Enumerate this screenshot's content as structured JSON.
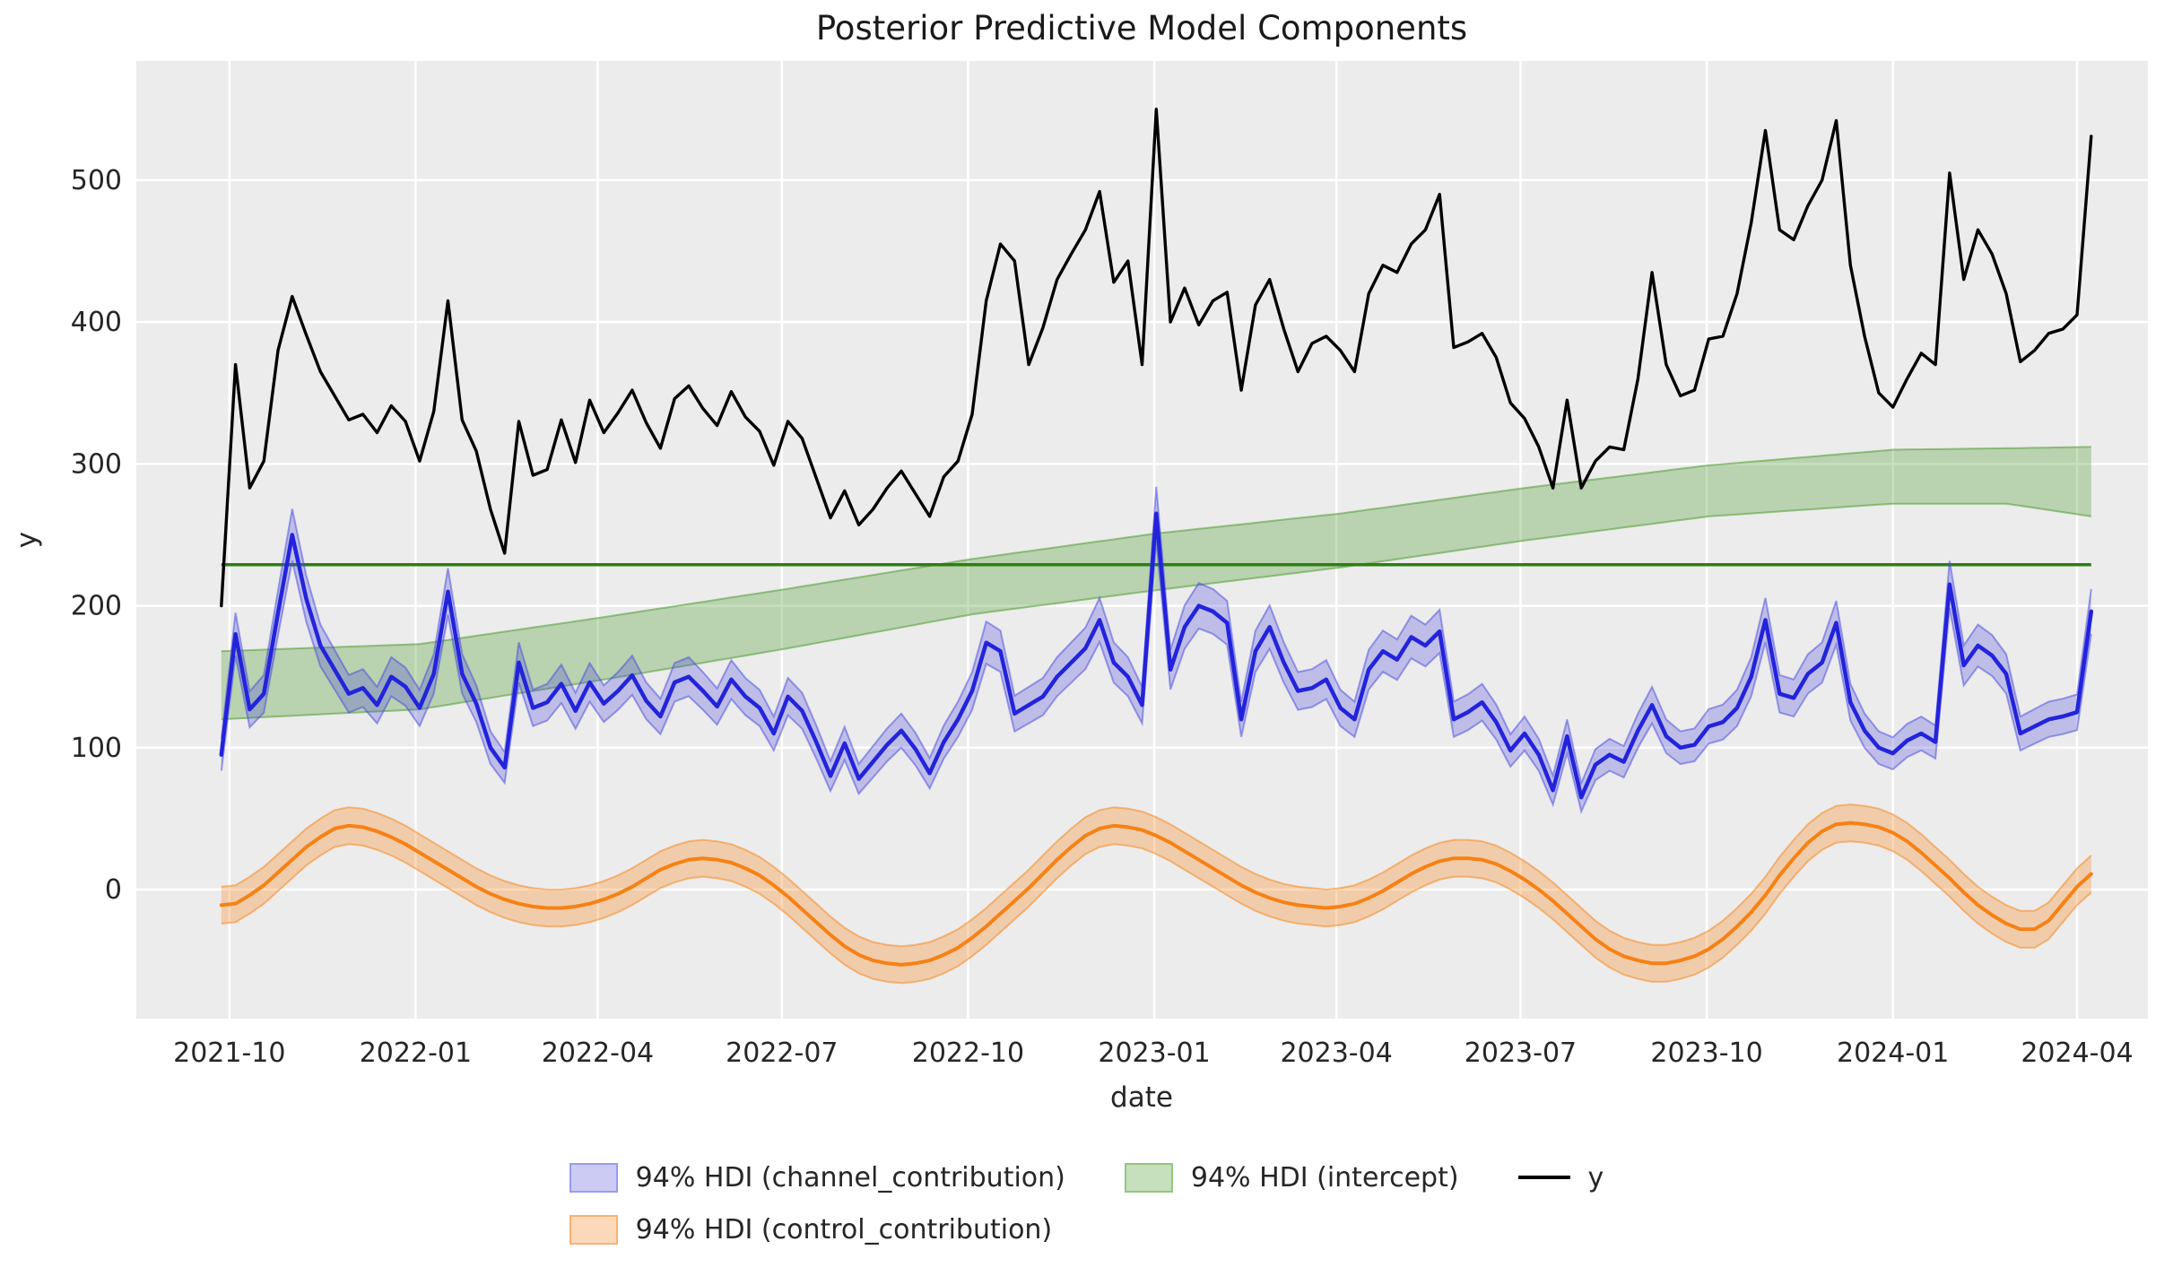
{
  "title": "Posterior Predictive Model Components",
  "style": {
    "figure_bg": "#ffffff",
    "plot_bg": "#ececec",
    "grid_color": "#ffffff",
    "text_color": "#262626",
    "black_line": "#000000",
    "blue_line": "#2323dc",
    "blue_band": "#4646e0",
    "orange_line": "#f78114",
    "orange_band": "#f78114",
    "green_band": "#4e9a2f",
    "green_line": "#2e7d14"
  },
  "chart_data": {
    "type": "line",
    "title": "Posterior Predictive Model Components",
    "xlabel": "date",
    "ylabel": "y",
    "grid": true,
    "legend_position": "bottom center",
    "x_start_date": "2021-09-27",
    "x_step_days": 7,
    "x_axis": {
      "tick_labels": [
        "2021-10",
        "2022-01",
        "2022-04",
        "2022-07",
        "2022-10",
        "2023-01",
        "2023-04",
        "2023-07",
        "2023-10",
        "2024-01",
        "2024-04"
      ],
      "tick_day_offsets": [
        4,
        96,
        186,
        277,
        369,
        461,
        551,
        642,
        734,
        826,
        917
      ],
      "range_days": [
        -42,
        952
      ]
    },
    "y_axis": {
      "ticks": [
        0,
        100,
        200,
        300,
        400,
        500
      ],
      "range": [
        -91,
        584
      ]
    },
    "series": [
      {
        "name": "intercept",
        "kind": "band_knots",
        "fill": "#4e9a2f",
        "fill_alpha": 0.32,
        "edge_alpha": 0.55,
        "knot_idx": [
          0,
          14,
          27,
          40,
          53,
          66,
          79,
          92,
          105,
          118,
          126,
          132
        ],
        "lower": [
          120,
          127,
          148,
          170,
          194,
          211,
          227,
          246,
          263,
          272,
          272,
          263
        ],
        "upper": [
          168,
          173,
          192,
          212,
          233,
          251,
          265,
          283,
          299,
          310,
          311,
          312
        ]
      },
      {
        "name": "control_contribution",
        "kind": "line_band",
        "line_color": "#f78114",
        "band_color": "#f78114",
        "band_alpha": 0.3,
        "edge_alpha": 0.5,
        "line_width": 4,
        "hw_base": 13,
        "hw_scale": 0,
        "values": [
          -11,
          -10,
          -4,
          3,
          12,
          21,
          30,
          37,
          43,
          45,
          44,
          41,
          37,
          32,
          26,
          20,
          14,
          8,
          2,
          -3,
          -7,
          -10,
          -12,
          -13,
          -13,
          -12,
          -10,
          -7,
          -3,
          2,
          8,
          14,
          18,
          21,
          22,
          21,
          19,
          15,
          10,
          3,
          -5,
          -14,
          -23,
          -32,
          -40,
          -46,
          -50,
          -52,
          -53,
          -52,
          -50,
          -46,
          -41,
          -34,
          -26,
          -17,
          -8,
          1,
          11,
          21,
          30,
          38,
          43,
          45,
          44,
          42,
          38,
          33,
          27,
          21,
          15,
          9,
          3,
          -2,
          -6,
          -9,
          -11,
          -12,
          -13,
          -12,
          -10,
          -6,
          -1,
          5,
          11,
          16,
          20,
          22,
          22,
          21,
          18,
          13,
          7,
          0,
          -8,
          -17,
          -26,
          -35,
          -42,
          -47,
          -50,
          -52,
          -52,
          -50,
          -47,
          -42,
          -35,
          -26,
          -16,
          -4,
          10,
          22,
          33,
          41,
          46,
          47,
          46,
          44,
          40,
          34,
          26,
          17,
          8,
          -2,
          -11,
          -18,
          -24,
          -28,
          -28,
          -22,
          -10,
          2,
          11
        ]
      },
      {
        "name": "intercept_mean",
        "kind": "hline",
        "value": 229,
        "color": "#2e7d14",
        "line_width": 3.5
      },
      {
        "name": "channel_contribution",
        "kind": "line_band",
        "line_color": "#2323dc",
        "band_color": "#4646e0",
        "band_alpha": 0.28,
        "edge_alpha": 0.5,
        "line_width": 4.5,
        "hw_base": 7,
        "hw_scale": 0.045,
        "values": [
          95,
          180,
          127,
          138,
          195,
          250,
          205,
          172,
          155,
          138,
          142,
          130,
          150,
          143,
          128,
          152,
          210,
          152,
          131,
          100,
          86,
          160,
          128,
          132,
          145,
          126,
          146,
          131,
          140,
          151,
          133,
          122,
          146,
          150,
          140,
          129,
          148,
          136,
          128,
          110,
          136,
          126,
          104,
          80,
          103,
          78,
          90,
          102,
          112,
          99,
          82,
          104,
          120,
          140,
          174,
          168,
          124,
          130,
          136,
          150,
          160,
          170,
          190,
          160,
          150,
          130,
          265,
          155,
          185,
          200,
          196,
          188,
          120,
          168,
          185,
          160,
          140,
          142,
          148,
          128,
          120,
          155,
          168,
          162,
          178,
          172,
          182,
          120,
          125,
          132,
          118,
          98,
          110,
          95,
          70,
          108,
          65,
          88,
          95,
          90,
          112,
          130,
          108,
          100,
          102,
          115,
          118,
          128,
          150,
          190,
          138,
          135,
          152,
          160,
          188,
          132,
          112,
          100,
          96,
          105,
          110,
          104,
          215,
          158,
          172,
          165,
          152,
          110,
          115,
          120,
          122,
          125,
          196
        ]
      },
      {
        "name": "y",
        "kind": "line",
        "line_color": "#000000",
        "line_width": 3.4,
        "values": [
          200,
          370,
          283,
          302,
          380,
          418,
          391,
          365,
          348,
          331,
          335,
          322,
          341,
          330,
          302,
          337,
          415,
          331,
          309,
          268,
          237,
          330,
          292,
          296,
          331,
          301,
          345,
          322,
          336,
          352,
          329,
          311,
          346,
          355,
          339,
          327,
          351,
          333,
          323,
          299,
          330,
          318,
          290,
          262,
          281,
          257,
          268,
          283,
          295,
          279,
          263,
          291,
          302,
          335,
          415,
          455,
          443,
          370,
          396,
          430,
          448,
          465,
          492,
          428,
          443,
          370,
          550,
          400,
          424,
          398,
          415,
          421,
          352,
          412,
          430,
          395,
          365,
          385,
          390,
          380,
          365,
          420,
          440,
          435,
          455,
          465,
          490,
          382,
          386,
          392,
          375,
          343,
          332,
          312,
          283,
          345,
          283,
          302,
          312,
          310,
          360,
          435,
          370,
          348,
          352,
          388,
          390,
          420,
          470,
          535,
          465,
          458,
          482,
          500,
          542,
          440,
          390,
          350,
          340,
          360,
          378,
          370,
          505,
          430,
          465,
          448,
          420,
          372,
          380,
          392,
          395,
          405,
          531
        ]
      }
    ],
    "legend_columns": [
      [
        {
          "label": "94% HDI (channel_contribution)",
          "swatch": "patch",
          "fill": "#cbcbf3",
          "edge": "#9b9bee"
        },
        {
          "label": "94% HDI (control_contribution)",
          "swatch": "patch",
          "fill": "#fcd9b8",
          "edge": "#f9b275"
        }
      ],
      [
        {
          "label": "94% HDI (intercept)",
          "swatch": "patch",
          "fill": "#c6dfbc",
          "edge": "#97c583"
        }
      ],
      [
        {
          "label": "y",
          "swatch": "line",
          "color": "#000000"
        }
      ]
    ]
  }
}
